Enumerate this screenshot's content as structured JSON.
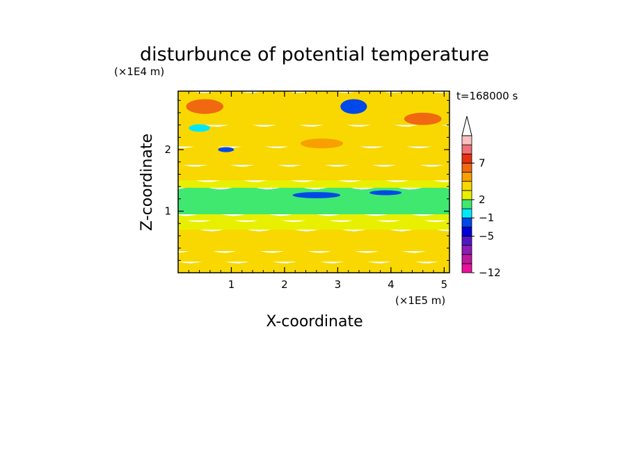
{
  "chart_data": {
    "type": "heatmap",
    "title": "disturbunce of potential temperature",
    "time_label": "t=168000 s",
    "xlabel": "X-coordinate",
    "ylabel": "Z-coordinate",
    "x_scale_label": "(×1E5 m)",
    "y_scale_label": "(×1E4 m)",
    "xlim": [
      0,
      5.1
    ],
    "ylim": [
      0,
      2.95
    ],
    "x_ticks": [
      "1",
      "2",
      "3",
      "4",
      "5"
    ],
    "y_ticks": [
      "1",
      "2"
    ],
    "colorbar": {
      "colors": [
        "#e8109c",
        "#c0189c",
        "#8c1cb4",
        "#5018c4",
        "#0000d8",
        "#0048e8",
        "#00e8f8",
        "#40e870",
        "#e8f000",
        "#f8d800",
        "#f8a000",
        "#f06810",
        "#e83010",
        "#f07078",
        "#f8c0c0"
      ],
      "labels": [
        "7",
        "2",
        "−1",
        "−5",
        "−12"
      ],
      "extend_top": true
    },
    "field_description": "Layered potential temperature disturbance in Kelvin-like units: cold cyan/blue band near z=1.0-1.4, warm yellow/orange lower layer and mixed upper layer.",
    "bands": [
      {
        "z0": 0.0,
        "z1": 0.18,
        "value": 2
      },
      {
        "z0": 0.18,
        "z1": 0.35,
        "value": 1
      },
      {
        "z0": 0.35,
        "z1": 0.7,
        "value": 2
      },
      {
        "z0": 0.7,
        "z1": 0.85,
        "value": 0
      },
      {
        "z0": 0.85,
        "z1": 0.95,
        "value": -0.5
      },
      {
        "z0": 0.95,
        "z1": 1.38,
        "value": -1
      },
      {
        "z0": 1.38,
        "z1": 1.5,
        "value": -0.5
      },
      {
        "z0": 1.5,
        "z1": 1.75,
        "value": 1
      },
      {
        "z0": 1.75,
        "z1": 2.05,
        "value": 2
      },
      {
        "z0": 2.05,
        "z1": 2.4,
        "value": 1.5
      },
      {
        "z0": 2.4,
        "z1": 2.95,
        "value": 2
      }
    ],
    "blobs": [
      {
        "x": 2.6,
        "z": 1.26,
        "rx": 0.45,
        "rz": 0.05,
        "value": -5
      },
      {
        "x": 3.9,
        "z": 1.3,
        "rx": 0.3,
        "rz": 0.04,
        "value": -5
      },
      {
        "x": 3.3,
        "z": 2.7,
        "rx": 0.25,
        "rz": 0.12,
        "value": -5
      },
      {
        "x": 0.9,
        "z": 2.0,
        "rx": 0.15,
        "rz": 0.04,
        "value": -5
      },
      {
        "x": 0.5,
        "z": 2.7,
        "rx": 0.35,
        "rz": 0.12,
        "value": 4
      },
      {
        "x": 4.6,
        "z": 2.5,
        "rx": 0.35,
        "rz": 0.1,
        "value": 4
      },
      {
        "x": 2.7,
        "z": 2.1,
        "rx": 0.4,
        "rz": 0.08,
        "value": 3
      },
      {
        "x": 0.4,
        "z": 2.35,
        "rx": 0.2,
        "rz": 0.06,
        "value": -3
      }
    ]
  }
}
